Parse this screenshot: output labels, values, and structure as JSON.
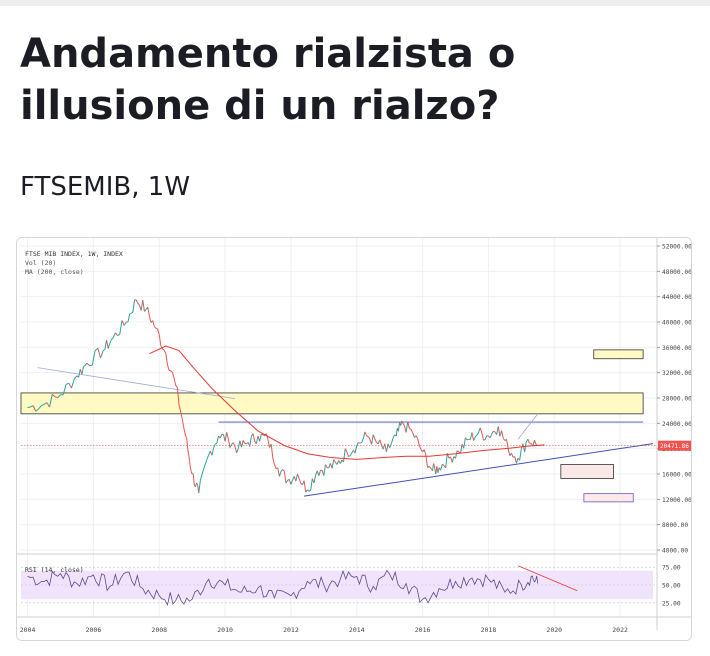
{
  "article": {
    "title": "Andamento rialzista o illusione di un rialzo?",
    "symbol": "FTSEMIB, 1W"
  },
  "chart_data": {
    "type": "line",
    "legend": {
      "name": "FTSE MIB INDEX, 1W, INDEX",
      "vol": "Vol (20)",
      "ma": "MA (200, close)"
    },
    "price_axis": {
      "ticks": [
        "52000.00",
        "48000.00",
        "44000.00",
        "40000.00",
        "36000.00",
        "32000.00",
        "28000.00",
        "24000.00",
        "20000.00",
        "16000.00",
        "12000.00",
        "8000.00",
        "4000.00"
      ],
      "ylim": [
        4000,
        52000
      ],
      "last_price_label": "20471.86",
      "last_price": 20471.86
    },
    "x_axis": {
      "ticks": [
        "2004",
        "2006",
        "2008",
        "2010",
        "2012",
        "2014",
        "2016",
        "2018",
        "2020",
        "2022"
      ],
      "xlim": [
        2003.8,
        2023.0
      ]
    },
    "series": [
      {
        "name": "FTSE MIB INDEX, 1W, INDEX",
        "x": [
          2004.0,
          2004.5,
          2005.0,
          2005.5,
          2005.8,
          2006.3,
          2006.6,
          2007.0,
          2007.3,
          2007.6,
          2007.9,
          2008.2,
          2008.5,
          2008.8,
          2009.0,
          2009.2,
          2009.5,
          2009.8,
          2010.1,
          2010.4,
          2010.7,
          2011.0,
          2011.3,
          2011.6,
          2011.9,
          2012.2,
          2012.5,
          2012.8,
          2013.1,
          2013.4,
          2013.7,
          2014.0,
          2014.3,
          2014.6,
          2014.9,
          2015.2,
          2015.4,
          2015.7,
          2016.0,
          2016.3,
          2016.5,
          2016.8,
          2017.1,
          2017.4,
          2017.7,
          2018.0,
          2018.3,
          2018.6,
          2018.9,
          2019.2,
          2019.5
        ],
        "values": [
          26500,
          27000,
          28500,
          31500,
          33500,
          35500,
          37500,
          40000,
          43500,
          42000,
          39000,
          35000,
          30000,
          22000,
          16000,
          13000,
          19000,
          22000,
          21500,
          20000,
          21000,
          22000,
          21500,
          17000,
          15000,
          16000,
          13500,
          16500,
          17000,
          17500,
          19500,
          20500,
          22000,
          21000,
          19500,
          22000,
          24000,
          22500,
          19500,
          16500,
          17000,
          18500,
          19500,
          21500,
          22500,
          22000,
          23500,
          20000,
          18500,
          21500,
          20500
        ]
      },
      {
        "name": "MA (200, close)",
        "x": [
          2007.7,
          2008.2,
          2008.6,
          2009.0,
          2009.6,
          2010.3,
          2011.0,
          2011.8,
          2012.5,
          2013.2,
          2014.0,
          2014.8,
          2015.5,
          2016.2,
          2017.0,
          2017.8,
          2018.5,
          2019.2,
          2019.7
        ],
        "values": [
          35000,
          36200,
          35500,
          33000,
          29500,
          26000,
          22800,
          20500,
          19200,
          18600,
          18300,
          18600,
          18800,
          18800,
          19200,
          19700,
          20000,
          20400,
          20600
        ]
      },
      {
        "name": "RSI (14, close)",
        "x": [
          2004.0,
          2004.5,
          2005.0,
          2005.5,
          2006.0,
          2006.5,
          2007.0,
          2007.5,
          2008.0,
          2008.5,
          2009.0,
          2009.5,
          2010.0,
          2010.5,
          2011.0,
          2011.5,
          2012.0,
          2012.5,
          2013.0,
          2013.5,
          2014.0,
          2014.5,
          2015.0,
          2015.5,
          2016.0,
          2016.5,
          2017.0,
          2017.5,
          2018.0,
          2018.5,
          2019.0,
          2019.3,
          2019.5
        ],
        "values": [
          62,
          55,
          66,
          52,
          64,
          48,
          68,
          45,
          35,
          28,
          30,
          58,
          50,
          40,
          46,
          32,
          35,
          55,
          50,
          58,
          62,
          48,
          65,
          52,
          30,
          45,
          55,
          60,
          58,
          40,
          50,
          62,
          52
        ]
      }
    ],
    "rsi_axis": {
      "label": "RSI (14, close)",
      "ticks": [
        "75.00",
        "50.00",
        "25.00"
      ],
      "ylim": [
        15,
        85
      ]
    },
    "drawings": {
      "resistance_zone": [
        25500,
        28800
      ],
      "upper_target_zone": [
        34200,
        35600
      ],
      "lower_zone_1": [
        15300,
        17500
      ],
      "lower_zone_2": [
        11600,
        12900
      ],
      "channel_top": 24200
    },
    "grid": true,
    "colors": {
      "price_up": "#26a69a",
      "price_down": "#ef5350",
      "ma": "#e53935",
      "trendline": "#3f51b5",
      "zone_fill": "#fff9c4",
      "zone_border": "#333333",
      "rsi_line": "#5c4b8a",
      "rsi_band": "#efe4fb",
      "rsi_divergence": "#e53935",
      "last_price_bg": "#ef5350"
    }
  }
}
